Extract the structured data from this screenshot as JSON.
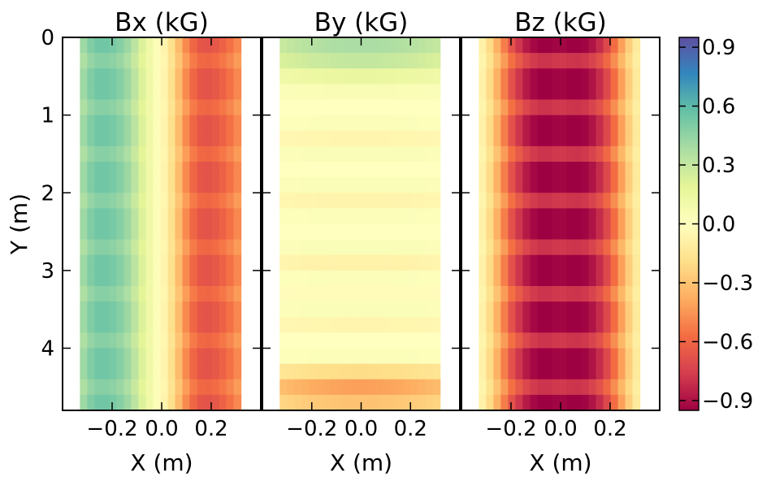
{
  "chart_data": [
    {
      "type": "heatmap",
      "title": "Bx (kG)",
      "xlabel": "X (m)",
      "ylabel": "Y (m)",
      "x_ticks": [
        -0.2,
        0.0,
        0.2
      ],
      "x_tick_labels": [
        "−0.2",
        "0.0",
        "0.2"
      ],
      "y_ticks": [
        0,
        1,
        2,
        3,
        4
      ],
      "y_tick_labels": [
        "0",
        "1",
        "2",
        "3",
        "4"
      ],
      "y_inverted": true,
      "xlim": [
        -0.4,
        0.4
      ],
      "ylim": [
        0,
        4.8
      ],
      "data_x_range": [
        -0.33,
        0.32
      ],
      "x_columns": [
        -0.315,
        -0.285,
        -0.255,
        -0.225,
        -0.195,
        -0.165,
        -0.135,
        -0.105,
        -0.075,
        -0.045,
        -0.015,
        0.015,
        0.045,
        0.075,
        0.105,
        0.135,
        0.165,
        0.195,
        0.225,
        0.255,
        0.285,
        0.315
      ],
      "values": [
        0.4,
        0.48,
        0.52,
        0.52,
        0.5,
        0.46,
        0.4,
        0.3,
        0.2,
        0.1,
        0.02,
        -0.08,
        -0.2,
        -0.35,
        -0.5,
        -0.6,
        -0.65,
        -0.65,
        -0.62,
        -0.58,
        -0.52,
        -0.45
      ],
      "y_modulation_amplitude": 0.08,
      "y_modulation_period": 0.6
    },
    {
      "type": "heatmap",
      "title": "By (kG)",
      "xlabel": "X (m)",
      "x_ticks": [
        -0.2,
        0.0,
        0.2
      ],
      "x_tick_labels": [
        "−0.2",
        "0.0",
        "0.2"
      ],
      "y_inverted": true,
      "xlim": [
        -0.4,
        0.4
      ],
      "ylim": [
        0,
        4.8
      ],
      "data_x_range": [
        -0.33,
        0.32
      ],
      "y_rows": [
        0.1,
        0.3,
        0.5,
        0.7,
        0.9,
        1.1,
        1.3,
        1.5,
        1.7,
        1.9,
        2.1,
        2.3,
        2.5,
        2.7,
        2.9,
        3.1,
        3.3,
        3.5,
        3.7,
        3.9,
        4.1,
        4.3,
        4.5,
        4.7
      ],
      "values": [
        0.38,
        0.3,
        0.15,
        0.05,
        0.0,
        0.03,
        -0.06,
        0.04,
        0.0,
        0.04,
        -0.07,
        0.03,
        0.0,
        0.04,
        -0.08,
        0.03,
        -0.02,
        0.04,
        -0.06,
        0.0,
        0.03,
        -0.2,
        -0.42,
        -0.3
      ]
    },
    {
      "type": "heatmap",
      "title": "Bz (kG)",
      "xlabel": "X (m)",
      "x_ticks": [
        -0.2,
        0.0,
        0.2
      ],
      "x_tick_labels": [
        "−0.2",
        "0.0",
        "0.2"
      ],
      "y_inverted": true,
      "xlim": [
        -0.4,
        0.4
      ],
      "ylim": [
        0,
        4.8
      ],
      "data_x_range": [
        -0.33,
        0.32
      ],
      "x_columns": [
        -0.315,
        -0.285,
        -0.255,
        -0.225,
        -0.195,
        -0.165,
        -0.135,
        -0.105,
        -0.075,
        -0.045,
        -0.015,
        0.015,
        0.045,
        0.075,
        0.105,
        0.135,
        0.165,
        0.195,
        0.225,
        0.255,
        0.285,
        0.315
      ],
      "values": [
        -0.08,
        -0.2,
        -0.35,
        -0.5,
        -0.65,
        -0.75,
        -0.83,
        -0.88,
        -0.9,
        -0.9,
        -0.88,
        -0.88,
        -0.9,
        -0.9,
        -0.88,
        -0.83,
        -0.75,
        -0.65,
        -0.5,
        -0.35,
        -0.2,
        -0.08
      ],
      "y_modulation_amplitude": 0.12,
      "y_modulation_period": 0.6
    }
  ],
  "colorbar": {
    "min": -0.95,
    "max": 0.95,
    "ticks": [
      0.9,
      0.6,
      0.3,
      0.0,
      -0.3,
      -0.6,
      -0.9
    ],
    "tick_labels": [
      "0.9",
      "0.6",
      "0.3",
      "0.0",
      "−0.3",
      "−0.6",
      "−0.9"
    ],
    "colormap": "Spectral"
  }
}
